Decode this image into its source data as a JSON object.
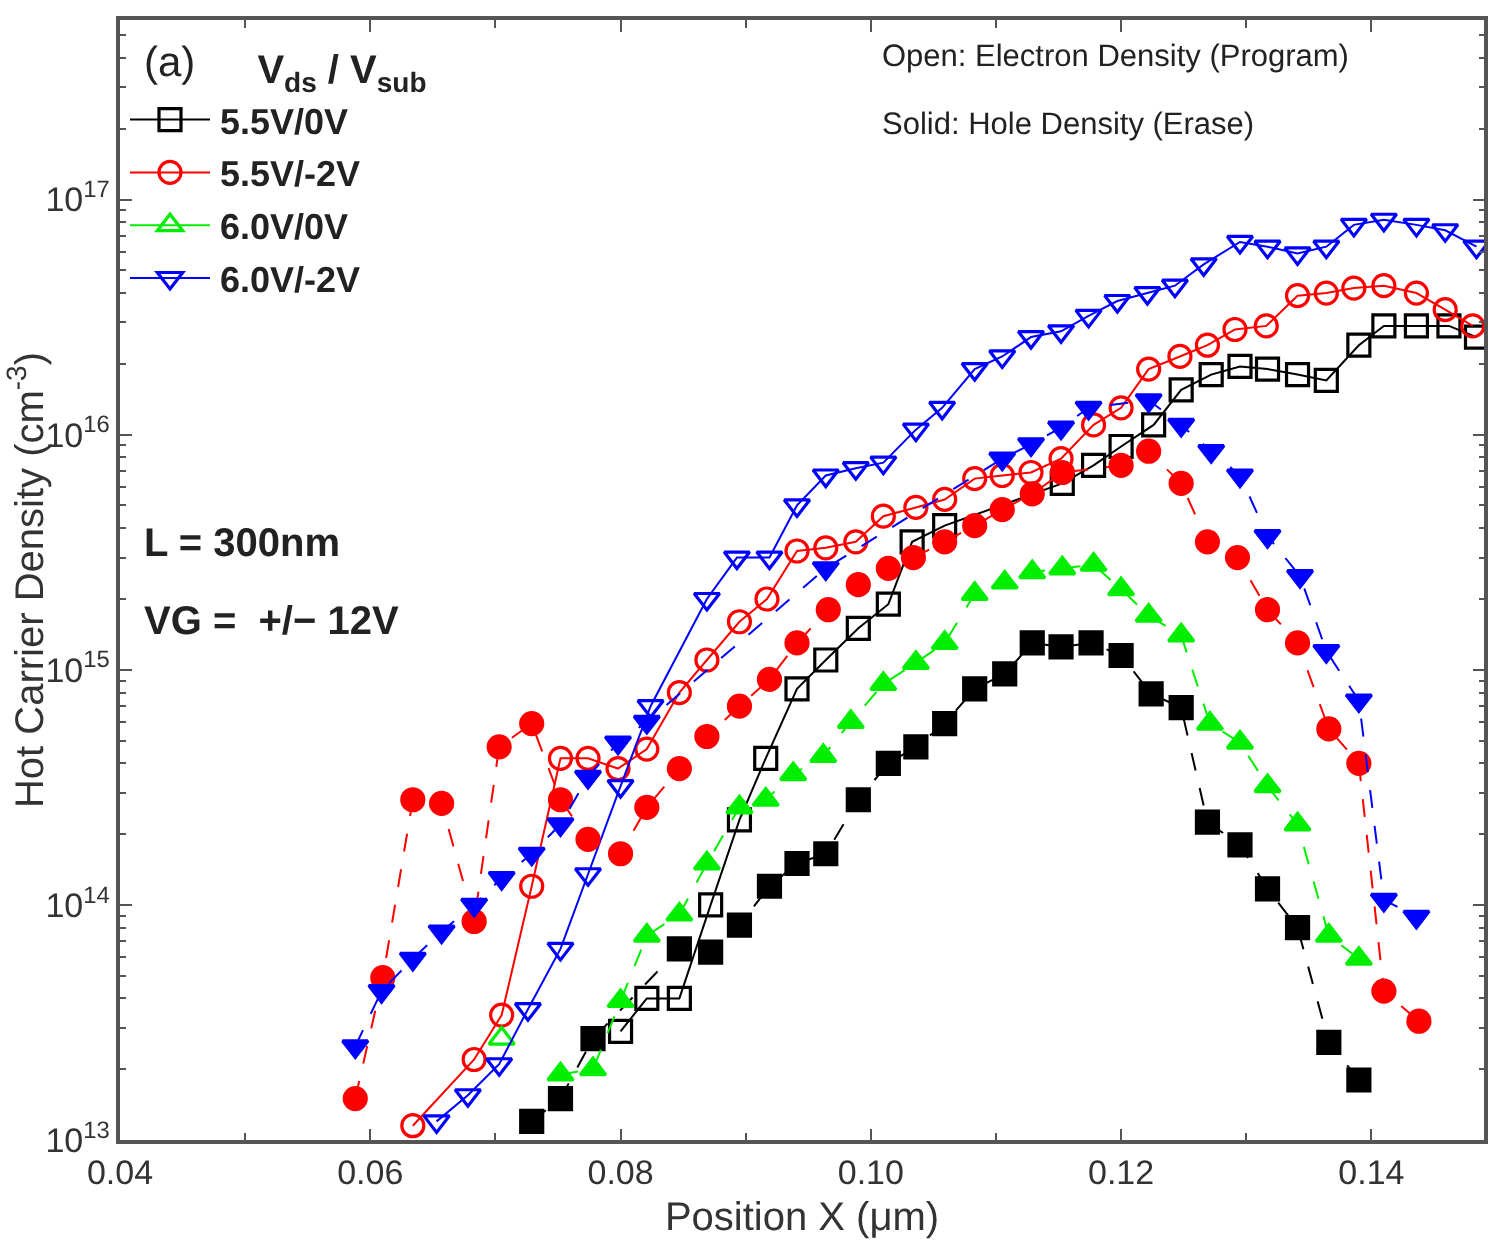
{
  "chart_data": {
    "type": "line",
    "xlabel": "Position X (μm)",
    "ylabel": "Hot Carrier Density (cm$^{-3}$)",
    "legend_title": "V$_{ds}$ / V$_{sub}$",
    "legend": "top left",
    "log": "y",
    "line_style": "solid",
    "xlim": [
      0.04,
      0.149
    ],
    "xticks": [
      0.04,
      0.06,
      0.08,
      {
        "value": 0.1,
        "label": "0.10"
      },
      0.12,
      0.14
    ],
    "ylim": [
      10000000000000.0,
      5.8e+17
    ],
    "yticks": [
      {
        "value": 10000000000000.0,
        "label": "10$^{13}$"
      },
      {
        "value": 100000000000000.0,
        "label": "10$^{14}$"
      },
      {
        "value": 1000000000000000.0,
        "label": "10$^{15}$"
      },
      {
        "value": 1e+16,
        "label": "10$^{16}$"
      },
      {
        "value": 1e+17,
        "label": "10$^{17}$"
      }
    ],
    "annotations": [
      "(a)",
      "Open: Electron Density (Program)",
      "Solid: Hole Density (Erase)",
      "L = 300nm",
      "VG =  +/− 12V"
    ],
    "series": [
      {
        "name": "5.5V/0V",
        "color": "#000000",
        "marker": "square-open",
        "x": [
          0.08,
          0.0821,
          0.0847,
          0.0872,
          0.0895,
          0.0916,
          0.0941,
          0.0964,
          0.099,
          0.1014,
          0.1033,
          0.1059,
          0.1153,
          0.1178,
          0.12,
          0.1226,
          0.1248,
          0.1272,
          0.1295,
          0.1317,
          0.1341,
          0.1364,
          0.139,
          0.141,
          0.1436,
          0.1462,
          0.1484
        ],
        "values": [
          29000000000000.0,
          40000000000000.0,
          40000000000000.0,
          100000000000000.0,
          230000000000000.0,
          420000000000000.0,
          830000000000000.0,
          1100000000000000.0,
          1500000000000000.0,
          1900000000000000.0,
          3500000000000000.0,
          4100000000000000.0,
          6200000000000000.0,
          7400000000000000.0,
          8900000000000000.0,
          1.1e+16,
          1.55e+16,
          1.8e+16,
          1.95e+16,
          1.9e+16,
          1.8e+16,
          1.7e+16,
          2.4e+16,
          2.9e+16,
          2.9e+16,
          2.9e+16,
          2.6e+16
        ]
      },
      {
        "name": "5.5V/-2V",
        "color": "#ff0000",
        "marker": "circle-open",
        "x": [
          0.0634,
          0.0683,
          0.0705,
          0.0729,
          0.0752,
          0.0774,
          0.0798,
          0.0821,
          0.0847,
          0.0869,
          0.0895,
          0.0917,
          0.0941,
          0.0964,
          0.0988,
          0.101,
          0.1036,
          0.1059,
          0.1083,
          0.1105,
          0.1128,
          0.1152,
          0.1178,
          0.12,
          0.1222,
          0.1247,
          0.1269,
          0.1291,
          0.1316,
          0.1341,
          0.1364,
          0.1386,
          0.141,
          0.1436,
          0.1459,
          0.1481
        ],
        "values": [
          11500000000000.0,
          22000000000000.0,
          34000000000000.0,
          120000000000000.0,
          420000000000000.0,
          420000000000000.0,
          380000000000000.0,
          460000000000000.0,
          800000000000000.0,
          1100000000000000.0,
          1600000000000000.0,
          2000000000000000.0,
          3200000000000000.0,
          3300000000000000.0,
          3500000000000000.0,
          4500000000000000.0,
          4900000000000000.0,
          5300000000000000.0,
          6500000000000000.0,
          6700000000000000.0,
          6900000000000000.0,
          7900000000000000.0,
          1.1e+16,
          1.3e+16,
          1.9e+16,
          2.15e+16,
          2.4e+16,
          2.8e+16,
          2.9e+16,
          3.9e+16,
          4e+16,
          4.2e+16,
          4.3e+16,
          4e+16,
          3.4e+16,
          2.9e+16
        ]
      },
      {
        "name": "6.0V/0V",
        "color": "#00ee00",
        "marker": "triangle-up-open",
        "x": [
          0.0705
        ],
        "values": [
          27000000000000.0
        ]
      },
      {
        "name": "6.0V/-2V",
        "color": "#0000ff",
        "marker": "triangle-down-open",
        "x": [
          0.0653,
          0.0678,
          0.0703,
          0.0726,
          0.0752,
          0.0774,
          0.08,
          0.0824,
          0.0869,
          0.0893,
          0.0919,
          0.0941,
          0.0964,
          0.0988,
          0.101,
          0.1036,
          0.1057,
          0.1083,
          0.1105,
          0.1128,
          0.1152,
          0.1174,
          0.1197,
          0.1221,
          0.1243,
          0.1266,
          0.1295,
          0.1317,
          0.1341,
          0.1364,
          0.1386,
          0.141,
          0.1436,
          0.1459,
          0.1484
        ],
        "values": [
          12000000000000.0,
          15500000000000.0,
          21000000000000.0,
          36000000000000.0,
          65000000000000.0,
          135000000000000.0,
          320000000000000.0,
          700000000000000.0,
          2000000000000000.0,
          3000000000000000.0,
          3000000000000000.0,
          5000000000000000.0,
          6700000000000000.0,
          7200000000000000.0,
          7600000000000000.0,
          1.05e+16,
          1.3e+16,
          1.9e+16,
          2.15e+16,
          2.6e+16,
          2.75e+16,
          3.2e+16,
          3.7e+16,
          4e+16,
          4.3e+16,
          5.3e+16,
          6.6e+16,
          6.3e+16,
          5.9e+16,
          6.3e+16,
          7.8e+16,
          8.2e+16,
          7.8e+16,
          7.4e+16,
          6.3e+16
        ]
      },
      {
        "color": "#000000",
        "marker": "square",
        "line_style": "dashed",
        "x": [
          0.0729,
          0.0752,
          0.0778,
          0.0847,
          0.0872,
          0.0895,
          0.0919,
          0.0941,
          0.0964,
          0.099,
          0.1014,
          0.1036,
          0.1059,
          0.1083,
          0.1107,
          0.1129,
          0.1152,
          0.1176,
          0.12,
          0.1224,
          0.1248,
          0.1269,
          0.1295,
          0.1317,
          0.1341,
          0.1366,
          0.139
        ],
        "values": [
          12000000000000.0,
          15000000000000.0,
          27000000000000.0,
          65000000000000.0,
          63000000000000.0,
          82000000000000.0,
          120000000000000.0,
          150000000000000.0,
          165000000000000.0,
          280000000000000.0,
          400000000000000.0,
          470000000000000.0,
          590000000000000.0,
          830000000000000.0,
          960000000000000.0,
          1300000000000000.0,
          1250000000000000.0,
          1300000000000000.0,
          1150000000000000.0,
          790000000000000.0,
          690000000000000.0,
          225000000000000.0,
          180000000000000.0,
          117000000000000.0,
          80000000000000.0,
          26000000000000.0,
          18000000000000.0
        ]
      },
      {
        "color": "#ff0000",
        "marker": "circle",
        "line_style": "dashed",
        "x": [
          0.0588,
          0.061,
          0.0634,
          0.0657,
          0.0683,
          0.0703,
          0.0729,
          0.0752,
          0.0774,
          0.08,
          0.0821,
          0.0847,
          0.0869,
          0.0895,
          0.0919,
          0.0941,
          0.0966,
          0.099,
          0.1014,
          0.1034,
          0.1059,
          0.1083,
          0.1105,
          0.1129,
          0.1153,
          0.12,
          0.1222,
          0.1248,
          0.1269,
          0.1293,
          0.1317,
          0.1341,
          0.1366,
          0.139,
          0.141,
          0.1438
        ],
        "values": [
          15000000000000.0,
          49000000000000.0,
          280000000000000.0,
          270000000000000.0,
          85000000000000.0,
          470000000000000.0,
          590000000000000.0,
          280000000000000.0,
          190000000000000.0,
          165000000000000.0,
          260000000000000.0,
          380000000000000.0,
          520000000000000.0,
          700000000000000.0,
          910000000000000.0,
          1300000000000000.0,
          1800000000000000.0,
          2300000000000000.0,
          2700000000000000.0,
          3000000000000000.0,
          3500000000000000.0,
          4100000000000000.0,
          4800000000000000.0,
          5600000000000000.0,
          6900000000000000.0,
          7400000000000000.0,
          8500000000000000.0,
          6200000000000000.0,
          3500000000000000.0,
          3000000000000000.0,
          1800000000000000.0,
          1300000000000000.0,
          560000000000000.0,
          400000000000000.0,
          43000000000000.0,
          32000000000000.0
        ]
      },
      {
        "color": "#00ee00",
        "marker": "triangle-up",
        "line_style": "dashed",
        "x": [
          0.0752,
          0.0778,
          0.08,
          0.0821,
          0.0847,
          0.0869,
          0.0895,
          0.0916,
          0.0938,
          0.0962,
          0.0984,
          0.101,
          0.1036,
          0.1059,
          0.1083,
          0.1107,
          0.1129,
          0.1153,
          0.1178,
          0.12,
          0.1222,
          0.1248,
          0.1271,
          0.1295,
          0.1317,
          0.1341,
          0.1366,
          0.139
        ],
        "values": [
          19000000000000.0,
          20000000000000.0,
          39000000000000.0,
          74000000000000.0,
          91000000000000.0,
          150000000000000.0,
          260000000000000.0,
          280000000000000.0,
          360000000000000.0,
          430000000000000.0,
          600000000000000.0,
          870000000000000.0,
          1070000000000000.0,
          1300000000000000.0,
          2100000000000000.0,
          2350000000000000.0,
          2600000000000000.0,
          2700000000000000.0,
          2800000000000000.0,
          2200000000000000.0,
          1700000000000000.0,
          1400000000000000.0,
          590000000000000.0,
          490000000000000.0,
          320000000000000.0,
          220000000000000.0,
          74000000000000.0,
          59000000000000.0
        ]
      },
      {
        "color": "#0000ff",
        "marker": "triangle-down",
        "line_style": "dashed",
        "x": [
          0.0588,
          0.0609,
          0.0634,
          0.0657,
          0.0683,
          0.0705,
          0.0729,
          0.0752,
          0.0774,
          0.0798,
          0.0821,
          0.0964,
          0.1105,
          0.1128,
          0.1152,
          0.1174,
          0.1222,
          0.1248,
          0.1272,
          0.1295,
          0.1317,
          0.1343,
          0.1364,
          0.139,
          0.141,
          0.1436
        ],
        "values": [
          25000000000000.0,
          43000000000000.0,
          59000000000000.0,
          77000000000000.0,
          100000000000000.0,
          130000000000000.0,
          165000000000000.0,
          220000000000000.0,
          350000000000000.0,
          490000000000000.0,
          600000000000000.0,
          2700000000000000.0,
          7900000000000000.0,
          9100000000000000.0,
          1.07e+16,
          1.3e+16,
          1.4e+16,
          1.1e+16,
          8500000000000000.0,
          6700000000000000.0,
          3700000000000000.0,
          2500000000000000.0,
          1200000000000000.0,
          740000000000000.0,
          105000000000000.0,
          89000000000000.0
        ]
      }
    ]
  }
}
